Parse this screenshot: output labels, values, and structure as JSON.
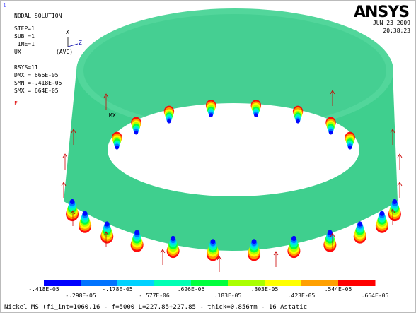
{
  "header": {
    "index": "1",
    "title": "NODAL SOLUTION",
    "info": [
      "STEP=1",
      "SUB =1",
      "TIME=1",
      "UX",
      "RSYS=11",
      "DMX =.666E-05",
      "SMN =-.418E-05",
      "SMX =.664E-05"
    ],
    "avg": "(AVG)",
    "force": "F"
  },
  "triad": {
    "x": "X",
    "z": "Z"
  },
  "marker": "MX",
  "logo": "ANSYS",
  "date": "JUN 23 2009",
  "time": "20:38:23",
  "legend": {
    "colors": [
      "#0000ff",
      "#0073ff",
      "#00d2ff",
      "#00ffb4",
      "#00ff3c",
      "#aaff00",
      "#ffff00",
      "#ffa000",
      "#ff0000"
    ],
    "labels": [
      "-.418E-05",
      "-.298E-05",
      "-.178E-05",
      "-.577E-06",
      ".626E-06",
      ".183E-05",
      ".303E-05",
      ".423E-05",
      ".544E-05",
      ".664E-05"
    ]
  },
  "caption": "Nickel MS (fi_int=1060.16 - f=5000 L=227.85+227.85 - thick=0.856mm - 16 Astatic"
}
